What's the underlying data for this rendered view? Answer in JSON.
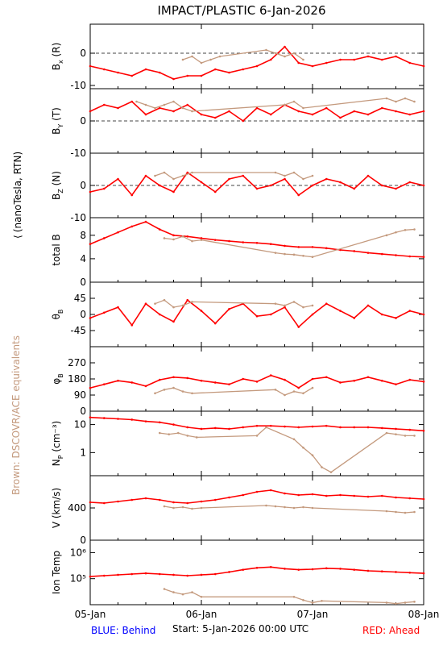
{
  "title": "IMPACT/PLASTIC     6-Jan-2026",
  "left_label": "(nanoTesla, RTN)",
  "left_label_open": "⟨",
  "side_note": "Brown: DSCOVR/ACE equivalents",
  "footer": {
    "behind": "BLUE: Behind",
    "start": "Start:   5-Jan-2026 00:00 UTC",
    "ahead": "RED: Ahead"
  },
  "colors": {
    "ahead": "#ff0000",
    "dscovr": "#c49a7e",
    "behind": "#0000ff",
    "axis": "#000000"
  },
  "chart_data": {
    "type": "line",
    "x_ticks": [
      "05-Jan",
      "06-Jan",
      "07-Jan",
      "08-Jan"
    ],
    "x_range_hours": [
      0,
      72
    ],
    "panels": [
      {
        "key": "bx",
        "ylabel": "B",
        "ysub": "x",
        "ysuffix": "(R)",
        "ylim": [
          -11,
          9
        ],
        "ticks": [
          -10,
          0
        ],
        "dashed_zero": true,
        "series": [
          {
            "name": "Ahead",
            "x": [
              0,
              3,
              6,
              9,
              12,
              15,
              18,
              21,
              24,
              27,
              30,
              33,
              36,
              39,
              42,
              45,
              48,
              51,
              54,
              57,
              60,
              63,
              66,
              69,
              72
            ],
            "y": [
              -4,
              -5,
              -6,
              -7,
              -5,
              -6,
              -8,
              -7,
              -7,
              -5,
              -6,
              -5,
              -4,
              -2,
              2,
              -3,
              -4,
              -3,
              -2,
              -2,
              -1,
              -2,
              -1,
              -3,
              -4
            ]
          },
          {
            "name": "DSCOVR",
            "x": [
              20,
              22,
              24,
              26,
              28,
              38,
              40,
              42,
              44,
              46
            ],
            "y": [
              -2,
              -1,
              -3,
              -2,
              -1,
              1,
              0,
              -1,
              0,
              -2
            ]
          }
        ]
      },
      {
        "key": "by",
        "ylabel": "B",
        "ysub": "Y",
        "ysuffix": "(T)",
        "ylim": [
          -10,
          10
        ],
        "ticks": [
          -10,
          0
        ],
        "dashed_zero": true,
        "series": [
          {
            "name": "Ahead",
            "x": [
              0,
              3,
              6,
              9,
              12,
              15,
              18,
              21,
              24,
              27,
              30,
              33,
              36,
              39,
              42,
              45,
              48,
              51,
              54,
              57,
              60,
              63,
              66,
              69,
              72
            ],
            "y": [
              3,
              5,
              4,
              6,
              2,
              4,
              3,
              5,
              2,
              1,
              3,
              0,
              4,
              2,
              5,
              3,
              2,
              4,
              1,
              3,
              2,
              4,
              3,
              2,
              3
            ]
          },
          {
            "name": "DSCOVR",
            "x": [
              10,
              12,
              14,
              16,
              18,
              20,
              22,
              42,
              44,
              46,
              64,
              66,
              68,
              70
            ],
            "y": [
              6,
              5,
              4,
              5,
              6,
              4,
              3,
              5,
              6,
              4,
              7,
              6,
              7,
              6
            ]
          }
        ]
      },
      {
        "key": "bz",
        "ylabel": "B",
        "ysub": "Z",
        "ysuffix": "(N)",
        "ylim": [
          -10,
          10
        ],
        "ticks": [
          -10,
          0
        ],
        "dashed_zero": true,
        "series": [
          {
            "name": "Ahead",
            "x": [
              0,
              3,
              6,
              9,
              12,
              15,
              18,
              21,
              24,
              27,
              30,
              33,
              36,
              39,
              42,
              45,
              48,
              51,
              54,
              57,
              60,
              63,
              66,
              69,
              72
            ],
            "y": [
              -2,
              -1,
              2,
              -3,
              3,
              0,
              -2,
              4,
              1,
              -2,
              2,
              3,
              -1,
              0,
              2,
              -3,
              0,
              2,
              1,
              -1,
              3,
              0,
              -1,
              1,
              0
            ]
          },
          {
            "name": "DSCOVR",
            "x": [
              14,
              16,
              18,
              20,
              22,
              40,
              42,
              44,
              46,
              48
            ],
            "y": [
              3,
              4,
              2,
              3,
              4,
              4,
              3,
              4,
              2,
              3
            ]
          }
        ]
      },
      {
        "key": "btot",
        "ylabel": "total B",
        "ysub": "",
        "ysuffix": "",
        "ylim": [
          0,
          11
        ],
        "ticks": [
          0,
          4,
          8
        ],
        "dashed_zero": false,
        "series": [
          {
            "name": "Ahead",
            "x": [
              0,
              3,
              6,
              9,
              12,
              15,
              18,
              21,
              24,
              27,
              30,
              33,
              36,
              39,
              42,
              45,
              48,
              51,
              54,
              57,
              60,
              63,
              66,
              69,
              72
            ],
            "y": [
              6.5,
              7.5,
              8.5,
              9.5,
              10.3,
              9,
              8,
              7.8,
              7.5,
              7.2,
              7,
              6.8,
              6.7,
              6.5,
              6.2,
              6,
              6,
              5.8,
              5.5,
              5.3,
              5,
              4.8,
              4.6,
              4.4,
              4.3
            ]
          },
          {
            "name": "DSCOVR",
            "x": [
              16,
              18,
              20,
              22,
              24,
              40,
              42,
              44,
              46,
              48,
              64,
              66,
              68,
              70
            ],
            "y": [
              7.5,
              7.3,
              7.8,
              7,
              7.2,
              5,
              4.8,
              4.7,
              4.5,
              4.3,
              8,
              8.5,
              8.9,
              9
            ]
          }
        ]
      },
      {
        "key": "theta",
        "ylabel": "θ",
        "ysub": "B",
        "ysuffix": "",
        "ylim": [
          -90,
          90
        ],
        "ticks": [
          -45,
          0,
          45
        ],
        "dashed_zero": false,
        "series": [
          {
            "name": "Ahead",
            "x": [
              0,
              3,
              6,
              9,
              12,
              15,
              18,
              21,
              24,
              27,
              30,
              33,
              36,
              39,
              42,
              45,
              48,
              51,
              54,
              57,
              60,
              63,
              66,
              69,
              72
            ],
            "y": [
              -10,
              5,
              20,
              -30,
              30,
              0,
              -20,
              40,
              10,
              -25,
              15,
              30,
              -5,
              0,
              20,
              -35,
              0,
              30,
              10,
              -10,
              25,
              0,
              -10,
              10,
              0
            ]
          },
          {
            "name": "DSCOVR",
            "x": [
              14,
              16,
              18,
              20,
              22,
              40,
              42,
              44,
              46,
              48
            ],
            "y": [
              30,
              40,
              20,
              25,
              35,
              30,
              25,
              35,
              20,
              25
            ]
          }
        ]
      },
      {
        "key": "phi",
        "ylabel": "φ",
        "ysub": "B",
        "ysuffix": "",
        "ylim": [
          0,
          360
        ],
        "ticks": [
          0,
          90,
          180,
          270
        ],
        "dashed_zero": false,
        "series": [
          {
            "name": "Ahead",
            "x": [
              0,
              3,
              6,
              9,
              12,
              15,
              18,
              21,
              24,
              27,
              30,
              33,
              36,
              39,
              42,
              45,
              48,
              51,
              54,
              57,
              60,
              63,
              66,
              69,
              72
            ],
            "y": [
              130,
              150,
              170,
              160,
              140,
              175,
              190,
              185,
              170,
              160,
              150,
              180,
              165,
              200,
              175,
              130,
              180,
              190,
              160,
              170,
              190,
              170,
              150,
              175,
              165
            ]
          },
          {
            "name": "DSCOVR",
            "x": [
              14,
              16,
              18,
              20,
              22,
              40,
              42,
              44,
              46,
              48
            ],
            "y": [
              100,
              120,
              130,
              110,
              100,
              120,
              90,
              110,
              100,
              130
            ]
          }
        ]
      },
      {
        "key": "np",
        "ylabel": "N",
        "ysub": "P",
        "ysuffix": "(cm⁻³)",
        "ylim": [
          0.15,
          30
        ],
        "log": true,
        "ticks": [
          1,
          10
        ],
        "dashed_zero": false,
        "series": [
          {
            "name": "Ahead",
            "x": [
              0,
              3,
              6,
              9,
              12,
              15,
              18,
              21,
              24,
              27,
              30,
              33,
              36,
              39,
              42,
              45,
              48,
              51,
              54,
              57,
              60,
              63,
              66,
              69,
              72
            ],
            "y": [
              18,
              17,
              16,
              15,
              13,
              12,
              10,
              8,
              7,
              7.5,
              7,
              8,
              9,
              9,
              8.5,
              8,
              8.5,
              9,
              8,
              8,
              8,
              7.5,
              7,
              6.5,
              6
            ]
          },
          {
            "name": "DSCOVR",
            "x": [
              15,
              17,
              19,
              21,
              23,
              36,
              38,
              44,
              46,
              48,
              50,
              52,
              64,
              66,
              68,
              70
            ],
            "y": [
              5,
              4.5,
              5,
              4,
              3.5,
              4,
              8,
              3,
              1.5,
              0.8,
              0.3,
              0.2,
              5,
              4.5,
              4,
              4
            ]
          }
        ]
      },
      {
        "key": "v",
        "ylabel": "V (km/s)",
        "ysub": "",
        "ysuffix": "",
        "ylim": [
          0,
          800
        ],
        "ticks": [
          0,
          400
        ],
        "dashed_zero": false,
        "series": [
          {
            "name": "Ahead",
            "x": [
              0,
              3,
              6,
              9,
              12,
              15,
              18,
              21,
              24,
              27,
              30,
              33,
              36,
              39,
              42,
              45,
              48,
              51,
              54,
              57,
              60,
              63,
              66,
              69,
              72
            ],
            "y": [
              470,
              460,
              480,
              500,
              520,
              500,
              470,
              460,
              480,
              500,
              530,
              560,
              600,
              620,
              580,
              560,
              570,
              550,
              560,
              550,
              540,
              550,
              530,
              520,
              510
            ]
          },
          {
            "name": "DSCOVR",
            "x": [
              16,
              18,
              20,
              22,
              24,
              38,
              40,
              42,
              44,
              46,
              48,
              64,
              66,
              68,
              70
            ],
            "y": [
              420,
              400,
              410,
              390,
              400,
              430,
              420,
              410,
              400,
              410,
              400,
              360,
              350,
              340,
              350
            ]
          }
        ]
      },
      {
        "key": "temp",
        "ylabel": "Ion Temp",
        "ysub": "",
        "ysuffix": "",
        "ylim": [
          10000,
          3000000
        ],
        "log": true,
        "ticks": [
          100000,
          1000000
        ],
        "tick_labels": [
          "10⁵",
          "10⁶"
        ],
        "dashed_zero": false,
        "series": [
          {
            "name": "Ahead",
            "x": [
              0,
              3,
              6,
              9,
              12,
              15,
              18,
              21,
              24,
              27,
              30,
              33,
              36,
              39,
              42,
              45,
              48,
              51,
              54,
              57,
              60,
              63,
              66,
              69,
              72
            ],
            "y": [
              120000,
              130000,
              140000,
              150000,
              160000,
              150000,
              140000,
              130000,
              140000,
              150000,
              180000,
              220000,
              260000,
              280000,
              240000,
              220000,
              230000,
              250000,
              240000,
              220000,
              200000,
              190000,
              180000,
              170000,
              160000
            ]
          },
          {
            "name": "DSCOVR",
            "x": [
              16,
              18,
              20,
              22,
              24,
              44,
              46,
              48,
              50,
              64,
              66,
              68,
              70
            ],
            "y": [
              40000,
              30000,
              25000,
              30000,
              20000,
              20000,
              15000,
              12000,
              14000,
              12000,
              11000,
              12000,
              13000
            ]
          }
        ]
      }
    ]
  }
}
